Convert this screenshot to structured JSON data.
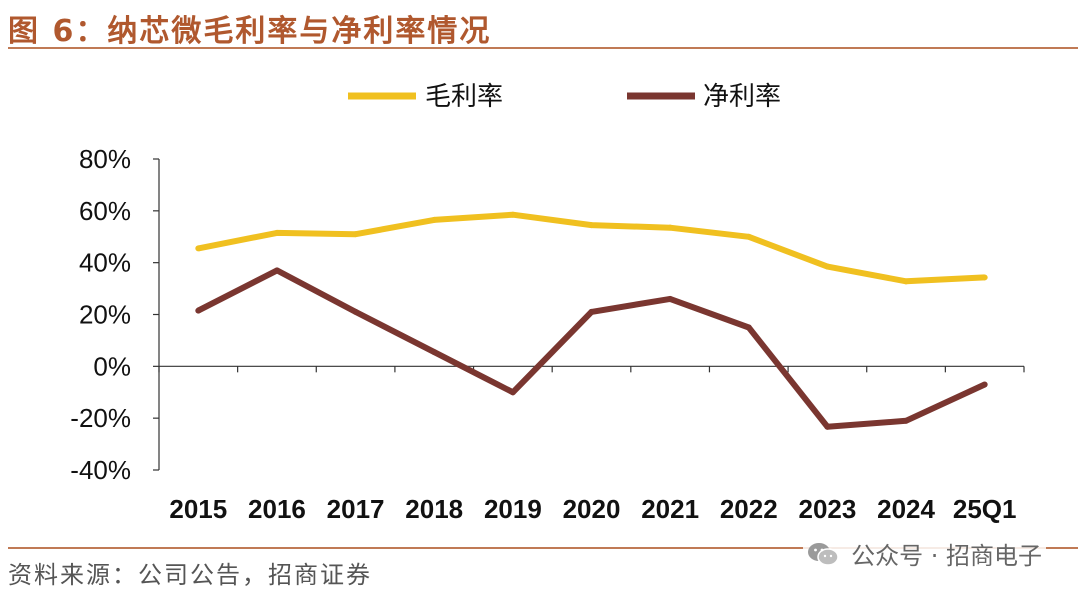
{
  "figure": {
    "title": "图 6：纳芯微毛利率与净利率情况",
    "source": "资料来源：公司公告，招商证券",
    "watermark": "公众号 · 招商电子"
  },
  "chart_data": {
    "type": "line",
    "title": "",
    "xlabel": "",
    "ylabel": "",
    "categories": [
      "2015",
      "2016",
      "2017",
      "2018",
      "2019",
      "2020",
      "2021",
      "2022",
      "2023",
      "2024",
      "25Q1"
    ],
    "ylim": [
      -40,
      80
    ],
    "yticks": [
      80,
      60,
      40,
      20,
      0,
      -20,
      -40
    ],
    "ytick_labels": [
      "80%",
      "60%",
      "40%",
      "20%",
      "0%",
      "-20%",
      "-40%"
    ],
    "grid": false,
    "legend": "top",
    "series": [
      {
        "name": "毛利率",
        "color": "#f0c020",
        "values": [
          45.5,
          51.5,
          51,
          56.5,
          58.5,
          54.5,
          53.5,
          50,
          38.5,
          32.8,
          34.3
        ]
      },
      {
        "name": "净利率",
        "color": "#7a3630",
        "values": [
          21.5,
          37,
          21,
          5.5,
          -10,
          21,
          26,
          15,
          -23.3,
          -21,
          -7
        ]
      }
    ]
  }
}
